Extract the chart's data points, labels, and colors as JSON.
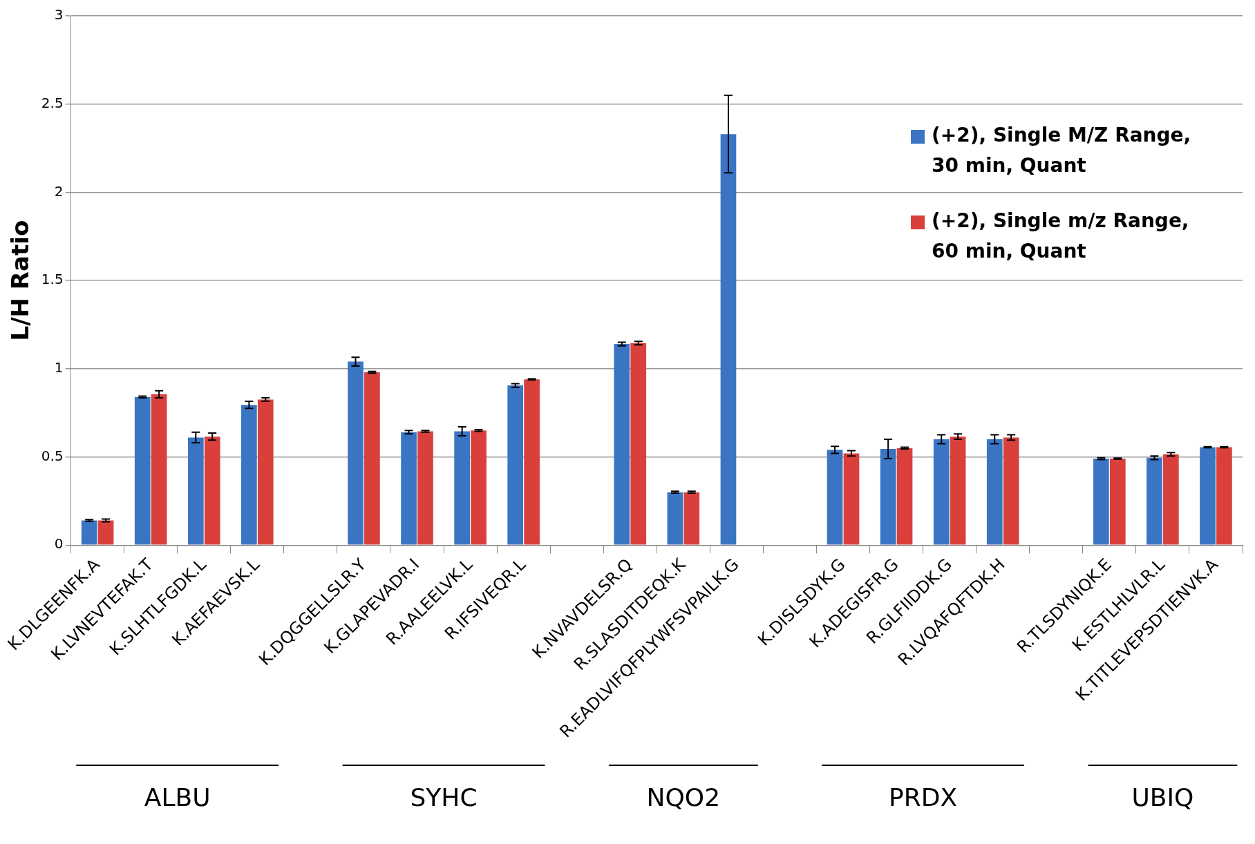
{
  "chart_data": {
    "type": "bar",
    "ylabel": "L/H Ratio",
    "categories": [
      "K.DLGEENFK.A",
      "K.LVNEVTEFAK.T",
      "K.SLHTLFGDK.L",
      "K.AEFAEVSK.L",
      null,
      "K.DQGGELLSLR.Y",
      "K.GLAPEVADR.I",
      "R.AALEELVK.L",
      "R.IFSIVEQR.L",
      null,
      "K.NVAVDELSR.Q",
      "R.SLASDITDEQK.K",
      "R.EADLVIFQFPLYWFSVPAILK.G",
      null,
      "K.DISLSDYK.G",
      "K.ADEGISFR.G",
      "R.GLFIIDDK.G",
      "R.LVQAFQFTDK.H",
      null,
      "R.TLSDYNIQK.E",
      "K.ESTLHLVLR.L",
      "K.TITLEVEPSDTIENVK.A"
    ],
    "series": [
      {
        "name": "(+2), Single M/Z Range, 30 min, Quant",
        "color": "#3a75c4",
        "values": [
          0.14,
          0.84,
          0.61,
          0.795,
          null,
          1.04,
          0.64,
          0.645,
          0.905,
          null,
          1.14,
          0.3,
          2.33,
          null,
          0.54,
          0.545,
          0.6,
          0.6,
          null,
          0.49,
          0.495,
          0.555
        ],
        "errors": [
          0.005,
          0.005,
          0.03,
          0.02,
          null,
          0.025,
          0.01,
          0.025,
          0.01,
          null,
          0.01,
          0.005,
          0.22,
          null,
          0.02,
          0.055,
          0.025,
          0.025,
          null,
          0.005,
          0.01,
          0.003
        ]
      },
      {
        "name": "(+2), Single m/z Range, 60 min, Quant",
        "color": "#d9403b",
        "values": [
          0.14,
          0.855,
          0.615,
          0.825,
          null,
          0.98,
          0.645,
          0.65,
          0.94,
          null,
          1.145,
          0.3,
          0,
          null,
          0.52,
          0.55,
          0.615,
          0.61,
          null,
          0.49,
          0.515,
          0.555
        ],
        "errors": [
          0.008,
          0.02,
          0.02,
          0.01,
          null,
          0.005,
          0.005,
          0.005,
          0.003,
          null,
          0.01,
          0.005,
          null,
          null,
          0.015,
          0.005,
          0.015,
          0.015,
          null,
          0.003,
          0.01,
          0.003
        ]
      }
    ],
    "annotations": [
      "ALBU",
      "SYHC",
      "NQO2",
      "PRDX",
      "UBIQ"
    ],
    "ylim": [
      0,
      3
    ],
    "yticks": [
      0,
      0.5,
      1,
      1.5,
      2,
      2.5,
      3
    ],
    "grid": "y",
    "legend": "top right"
  }
}
